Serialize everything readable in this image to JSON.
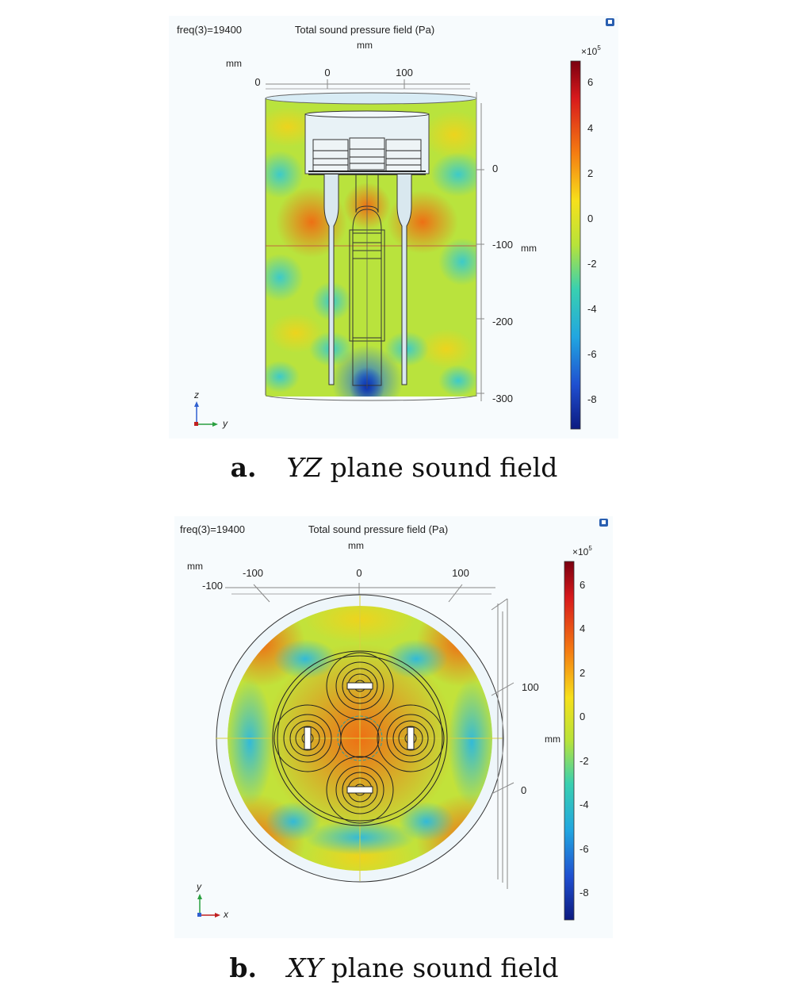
{
  "panel_a": {
    "freq": "freq(3)=19400",
    "title": "Total sound pressure field (Pa)",
    "unit_top": "mm",
    "unit_left": "mm",
    "unit_right": "mm",
    "top_ticks": [
      "0",
      "0",
      "100"
    ],
    "right_ticks": [
      "0",
      "-100",
      "-200",
      "-300"
    ],
    "colorbar": {
      "exp": "×10",
      "exp_sup": "5",
      "ticks": [
        "6",
        "4",
        "2",
        "0",
        "-2",
        "-4",
        "-6",
        "-8"
      ]
    },
    "axis_up": "z",
    "axis_right": "y",
    "caption_label": "a.",
    "caption_italic": "YZ",
    "caption_text": "plane sound field"
  },
  "panel_b": {
    "freq": "freq(3)=19400",
    "title": "Total sound pressure field (Pa)",
    "unit_top": "mm",
    "unit_left": "mm",
    "unit_right": "mm",
    "top_ticks": [
      "-100",
      "0",
      "100"
    ],
    "left_tick": "-100",
    "right_ticks": [
      "100",
      "0"
    ],
    "colorbar": {
      "exp": "×10",
      "exp_sup": "5",
      "ticks": [
        "6",
        "4",
        "2",
        "0",
        "-2",
        "-4",
        "-6",
        "-8"
      ]
    },
    "axis_up": "y",
    "axis_right": "x",
    "caption_label": "b.",
    "caption_italic": "XY",
    "caption_text": "plane sound field"
  }
}
